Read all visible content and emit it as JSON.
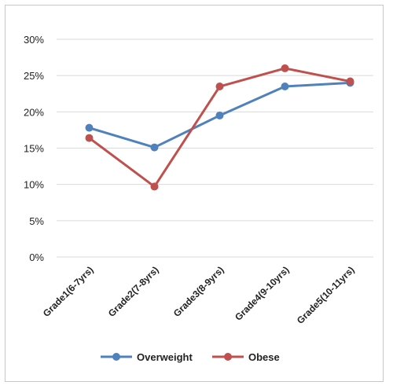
{
  "chart_data": {
    "type": "line",
    "categories": [
      "Grade1(6-7yrs)",
      "Grade2(7-8yrs)",
      "Grade3(8-9yrs)",
      "Grade4(9-10yrs)",
      "Grade5(10-11yrs)"
    ],
    "series": [
      {
        "name": "Overweight",
        "color": "#4F81BD",
        "values": [
          17.8,
          15.1,
          19.5,
          23.5,
          24.0
        ]
      },
      {
        "name": "Obese",
        "color": "#C0504D",
        "values": [
          16.4,
          9.7,
          23.5,
          26.0,
          24.2
        ]
      }
    ],
    "yticks": [
      "0%",
      "5%",
      "10%",
      "15%",
      "20%",
      "25%",
      "30%"
    ],
    "ylim": [
      0,
      30
    ],
    "title": "",
    "xlabel": "",
    "ylabel": "",
    "grid": true,
    "legend": "bottom"
  }
}
